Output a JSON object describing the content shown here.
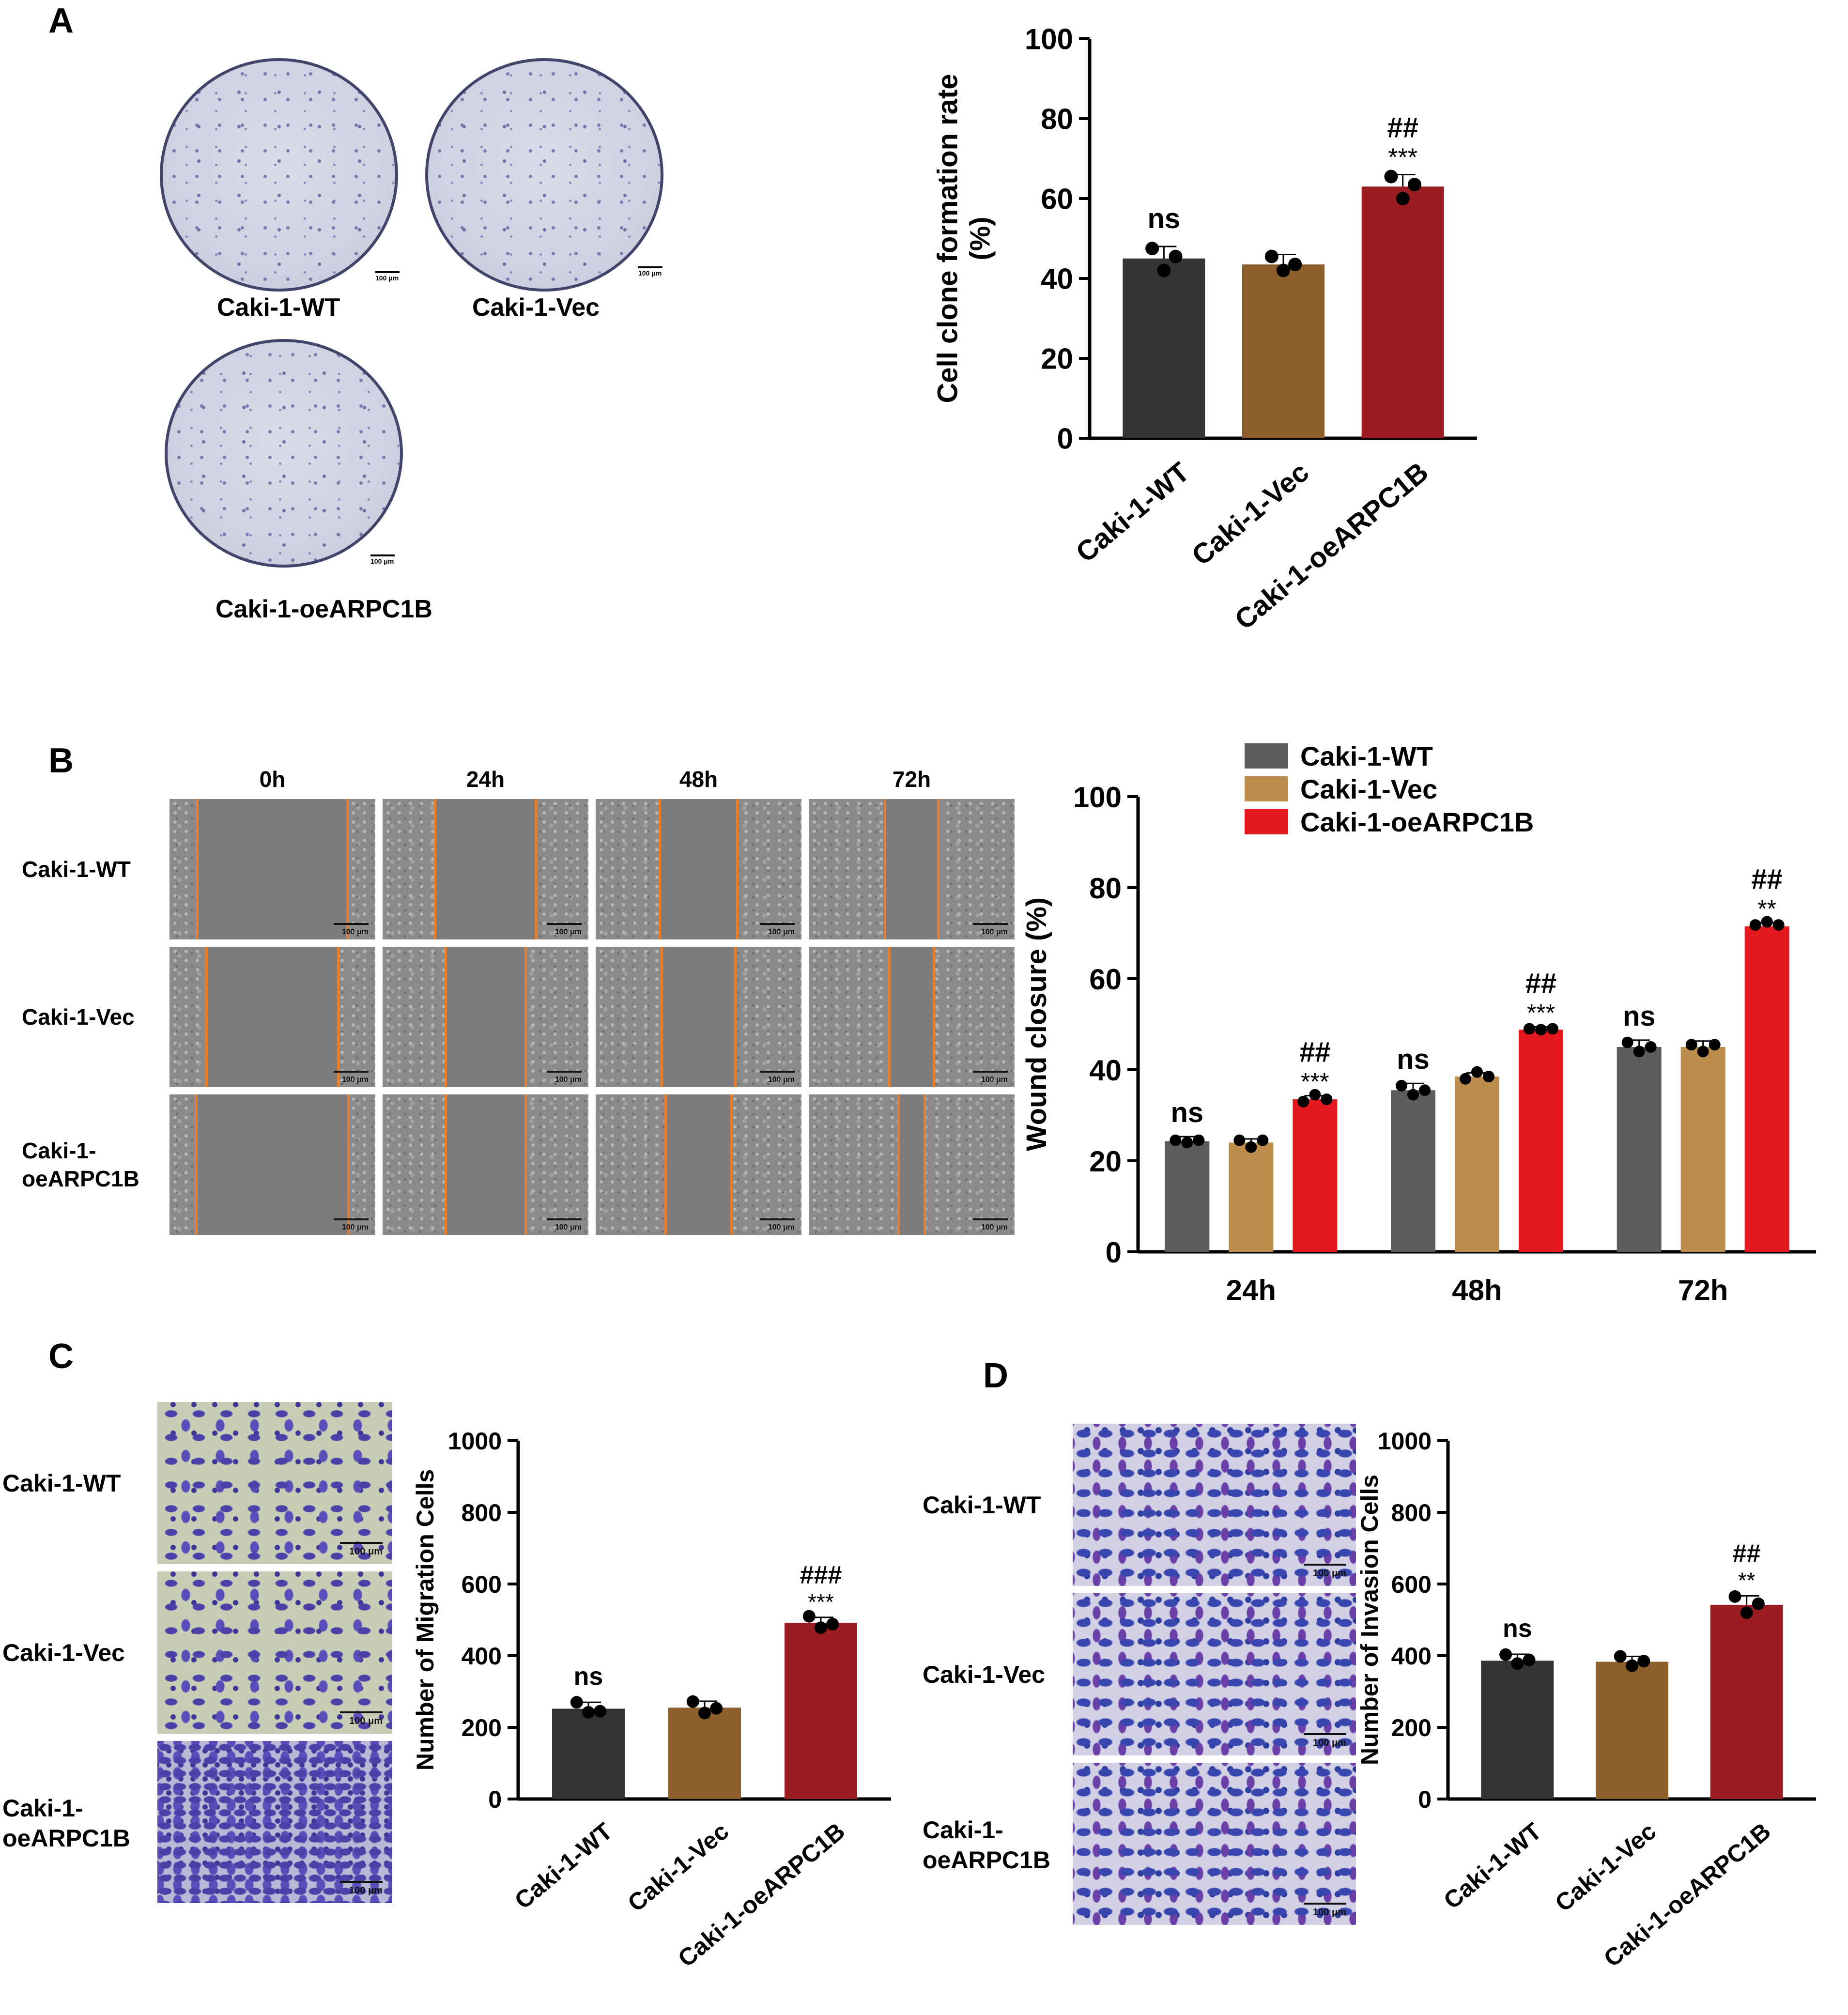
{
  "panels": {
    "A": {
      "letter": "A",
      "images": [
        {
          "label": "Caki-1-WT",
          "scale": "100 μm"
        },
        {
          "label": "Caki-1-Vec",
          "scale": "100 μm"
        },
        {
          "label": "Caki-1-oeARPC1B",
          "scale": "100 μm"
        }
      ]
    },
    "B": {
      "letter": "B",
      "time_headers": [
        "0h",
        "24h",
        "48h",
        "72h"
      ],
      "row_labels": [
        "Caki-1-WT",
        "Caki-1-Vec",
        "Caki-1-oeARPC1B"
      ],
      "row_label_lines": [
        [
          "Caki-1-WT"
        ],
        [
          "Caki-1-Vec"
        ],
        [
          "Caki-1-",
          "oeARPC1B"
        ]
      ],
      "scale": "100 μm",
      "wound_fraction": [
        [
          0.74,
          0.5,
          0.39,
          0.27
        ],
        [
          0.65,
          0.4,
          0.37,
          0.23
        ],
        [
          0.75,
          0.4,
          0.33,
          0.14
        ]
      ]
    },
    "C": {
      "letter": "C",
      "row_labels": [
        "Caki-1-WT",
        "Caki-1-Vec",
        "Caki-1-oeARPC1B"
      ],
      "row_label_lines": [
        [
          "Caki-1-WT"
        ],
        [
          "Caki-1-Vec"
        ],
        [
          "Caki-1-",
          "oeARPC1B"
        ]
      ],
      "scale": "100 μm"
    },
    "D": {
      "letter": "D",
      "row_labels": [
        "Caki-1-WT",
        "Caki-1-Vec",
        "Caki-1-oeARPC1B"
      ],
      "row_label_lines": [
        [
          "Caki-1-WT"
        ],
        [
          "Caki-1-Vec"
        ],
        [
          "Caki-1-",
          "oeARPC1B"
        ]
      ],
      "scale": "100 μm"
    }
  },
  "chart_data": [
    {
      "id": "A",
      "type": "bar",
      "title": "",
      "ylabel": "Cell clone formation rate (%)",
      "ylabel_lines": [
        "Cell clone formation rate",
        "(%)"
      ],
      "xlabel": "",
      "categories": [
        "Caki-1-WT",
        "Caki-1-Vec",
        "Caki-1-oeARPC1B"
      ],
      "values": [
        45,
        43.5,
        63
      ],
      "errors": [
        3,
        2.5,
        3
      ],
      "points": [
        [
          47.5,
          42,
          45.5
        ],
        [
          45.5,
          42,
          43.5
        ],
        [
          65.5,
          60,
          63.5
        ]
      ],
      "colors": [
        "#343434",
        "#8b5e2b",
        "#9a1d22"
      ],
      "annotations": [
        [
          "ns"
        ],
        [],
        [
          "***",
          "##"
        ]
      ],
      "ylim": [
        0,
        100
      ],
      "yticks": [
        0,
        20,
        40,
        60,
        80,
        100
      ]
    },
    {
      "id": "B",
      "type": "bar",
      "title": "",
      "ylabel": "Wound closure (%)",
      "xlabel": "",
      "categories": [
        "24h",
        "48h",
        "72h"
      ],
      "series": [
        {
          "name": "Caki-1-WT",
          "values": [
            24.3,
            35.5,
            45
          ],
          "errors": [
            1,
            1.5,
            1.5
          ],
          "points": [
            [
              24.5,
              24,
              24.5
            ],
            [
              36.5,
              34.5,
              35.5
            ],
            [
              46,
              44,
              45
            ]
          ],
          "color": "#5c5c5c",
          "annotations": [
            "ns",
            "ns",
            "ns"
          ]
        },
        {
          "name": "Caki-1-Vec",
          "values": [
            24,
            38.5,
            45
          ],
          "errors": [
            0.8,
            0.8,
            1.3
          ],
          "points": [
            [
              24.5,
              23,
              24.5
            ],
            [
              38,
              39.5,
              38.5
            ],
            [
              45.5,
              44,
              45.5
            ]
          ],
          "color": "#bd8d4e",
          "annotations": [
            "",
            "",
            ""
          ]
        },
        {
          "name": "Caki-1-oeARPC1B",
          "values": [
            33.5,
            48.8,
            71.5
          ],
          "errors": [
            0.8,
            0.6,
            0.8
          ],
          "points": [
            [
              33,
              34.5,
              33.5
            ],
            [
              49,
              48.8,
              49
            ],
            [
              71.8,
              72.5,
              71.8
            ]
          ],
          "color": "#e3181e",
          "annotations": [
            "***\n##",
            "***\n##",
            "**\n##"
          ]
        }
      ],
      "legend": [
        "Caki-1-WT",
        "Caki-1-Vec",
        "Caki-1-oeARPC1B"
      ],
      "legend_position": "top",
      "ylim": [
        0,
        100
      ],
      "yticks": [
        0,
        20,
        40,
        60,
        80,
        100
      ]
    },
    {
      "id": "C",
      "type": "bar",
      "title": "",
      "ylabel": "Number of Migration Cells",
      "xlabel": "",
      "categories": [
        "Caki-1-WT",
        "Caki-1-Vec",
        "Caki-1-oeARPC1B"
      ],
      "values": [
        252,
        255,
        492
      ],
      "errors": [
        18,
        18,
        15
      ],
      "points": [
        [
          270,
          242,
          245
        ],
        [
          272,
          240,
          253
        ],
        [
          510,
          478,
          488
        ]
      ],
      "colors": [
        "#343434",
        "#8b5e2b",
        "#9a1d22"
      ],
      "annotations": [
        [
          "ns"
        ],
        [],
        [
          "***",
          "###"
        ]
      ],
      "ylim": [
        0,
        1000
      ],
      "yticks": [
        0,
        200,
        400,
        600,
        800,
        1000
      ]
    },
    {
      "id": "D",
      "type": "bar",
      "title": "",
      "ylabel": "Number of Invasion Cells",
      "xlabel": "",
      "categories": [
        "Caki-1-WT",
        "Caki-1-Vec",
        "Caki-1-oeARPC1B"
      ],
      "values": [
        386,
        383,
        542
      ],
      "errors": [
        18,
        15,
        25
      ],
      "points": [
        [
          403,
          378,
          388
        ],
        [
          398,
          372,
          385
        ],
        [
          565,
          520,
          545
        ]
      ],
      "colors": [
        "#343434",
        "#8b5e2b",
        "#9a1d22"
      ],
      "annotations": [
        [
          "ns"
        ],
        [],
        [
          "**",
          "##"
        ]
      ],
      "ylim": [
        0,
        1000
      ],
      "yticks": [
        0,
        200,
        400,
        600,
        800,
        1000
      ]
    }
  ]
}
